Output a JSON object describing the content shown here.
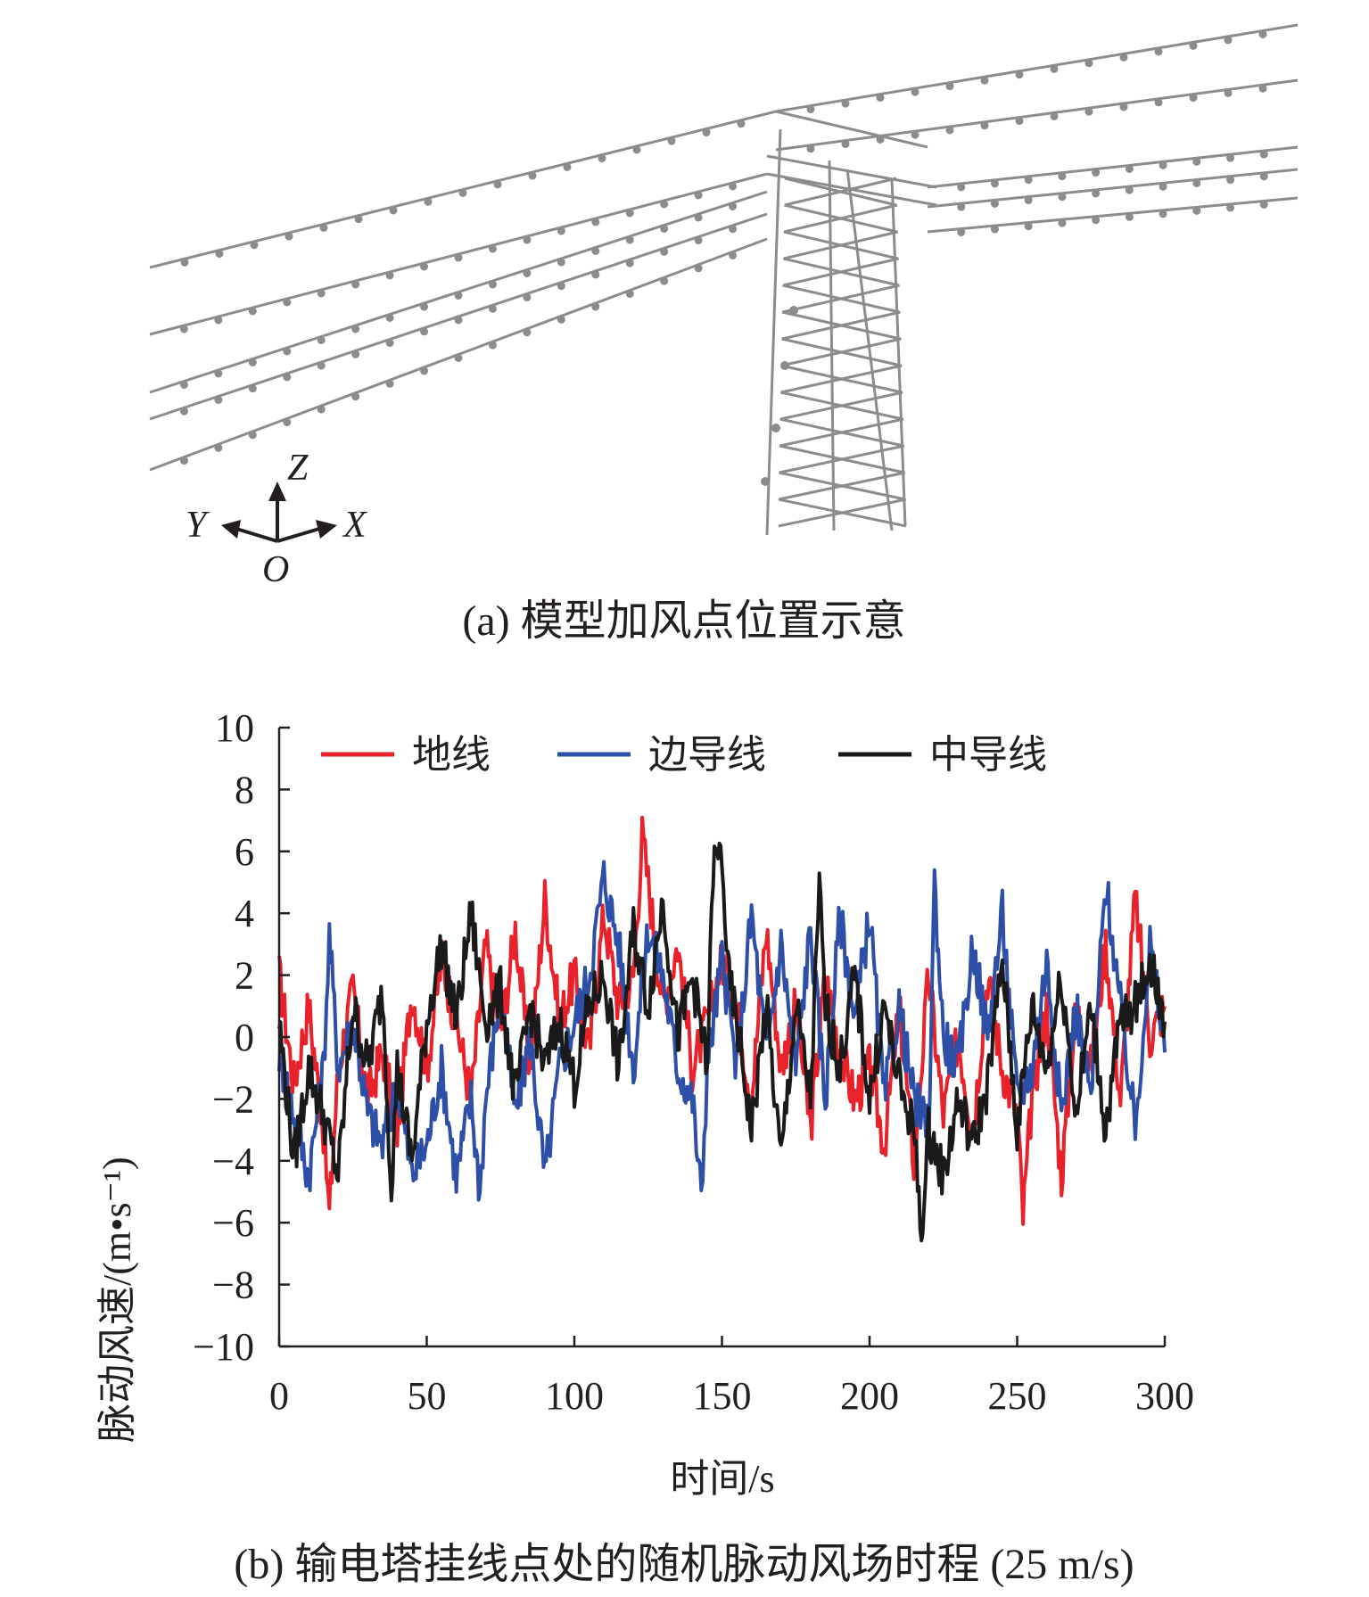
{
  "panel_a": {
    "caption": "(a) 模型加风点位置示意",
    "axes_labels": {
      "z": "Z",
      "y": "Y",
      "x": "X",
      "o": "O"
    }
  },
  "panel_b": {
    "caption": "(b) 输电塔挂线点处的随机脉动风场时程 (25 m/s)"
  },
  "colors": {
    "red": "#e8212b",
    "blue": "#2e4fa8",
    "black": "#1a1a1a",
    "tower": "#8c8c8c"
  },
  "chart_data": {
    "type": "line",
    "xlabel": "时间/s",
    "ylabel": "脉动风速/(m•s⁻¹)",
    "xlim": [
      0,
      300
    ],
    "ylim": [
      -10,
      10
    ],
    "xticks": [
      0,
      50,
      100,
      150,
      200,
      250,
      300
    ],
    "yticks": [
      -10,
      -8,
      -6,
      -4,
      -2,
      0,
      2,
      4,
      6,
      8,
      10
    ],
    "grid": false,
    "legend_position": "top",
    "series": [
      {
        "name": "地线",
        "color": "#e8212b",
        "x": [
          0,
          5,
          10,
          15,
          17,
          20,
          25,
          30,
          35,
          40,
          45,
          50,
          55,
          60,
          65,
          70,
          75,
          80,
          85,
          90,
          95,
          100,
          105,
          110,
          115,
          120,
          123,
          125,
          130,
          135,
          140,
          145,
          150,
          155,
          160,
          165,
          170,
          175,
          180,
          185,
          190,
          195,
          200,
          205,
          210,
          215,
          220,
          225,
          230,
          235,
          240,
          245,
          250,
          252,
          255,
          260,
          265,
          270,
          275,
          280,
          285,
          290,
          295,
          300
        ],
        "y": [
          2,
          -1.5,
          1,
          -3,
          -5.7,
          -1,
          1.5,
          -2,
          -0.5,
          -3,
          1.5,
          -1,
          2.5,
          0.5,
          -2,
          3,
          0,
          3.5,
          -1,
          4.5,
          0.5,
          2,
          -0.5,
          4,
          1,
          2,
          6.5,
          5,
          1,
          3,
          -1,
          0.5,
          2.5,
          1,
          -2,
          3.5,
          -1,
          1,
          -3,
          2,
          -0.5,
          -2,
          -1,
          -3.5,
          1,
          -4,
          2,
          -2.5,
          0,
          -3,
          2,
          -1,
          -2.5,
          -5.8,
          -2,
          1,
          -4.5,
          1,
          -1,
          3,
          -2,
          4.5,
          0,
          1
        ]
      },
      {
        "name": "边导线",
        "color": "#2e4fa8",
        "x": [
          0,
          5,
          10,
          15,
          17,
          20,
          25,
          30,
          35,
          40,
          45,
          50,
          55,
          60,
          65,
          68,
          70,
          75,
          80,
          85,
          90,
          95,
          100,
          105,
          110,
          115,
          120,
          125,
          130,
          135,
          140,
          143,
          145,
          150,
          155,
          160,
          165,
          170,
          175,
          180,
          185,
          190,
          195,
          200,
          205,
          210,
          215,
          220,
          222,
          225,
          230,
          235,
          240,
          245,
          250,
          255,
          260,
          265,
          270,
          275,
          280,
          285,
          290,
          295,
          300
        ],
        "y": [
          -0.5,
          -2.5,
          -4.5,
          -1,
          3.3,
          -1,
          0.5,
          -2.5,
          -3.5,
          -1.5,
          -4.5,
          -3.5,
          -1,
          -4.5,
          -2,
          -5,
          -2,
          1.5,
          -2.5,
          0,
          -4.5,
          -1,
          0.5,
          2,
          5.2,
          3,
          -1,
          3.5,
          2,
          -1,
          -2,
          -5.2,
          -1,
          2.5,
          -1,
          4,
          -0.5,
          3,
          -1,
          3.5,
          -2,
          4,
          0.5,
          4,
          -2,
          1,
          -2,
          -3,
          5,
          0,
          -1,
          3,
          0,
          4,
          -2,
          -1,
          2.5,
          -2.5,
          1,
          -2,
          5,
          1,
          -3,
          3,
          -0.5
        ]
      },
      {
        "name": "中导线",
        "color": "#1a1a1a",
        "x": [
          0,
          5,
          10,
          15,
          20,
          25,
          30,
          35,
          38,
          40,
          45,
          50,
          55,
          60,
          65,
          70,
          75,
          80,
          85,
          90,
          95,
          100,
          105,
          110,
          115,
          120,
          125,
          130,
          135,
          140,
          145,
          147,
          150,
          152,
          155,
          160,
          165,
          170,
          175,
          180,
          183,
          185,
          190,
          195,
          200,
          205,
          210,
          215,
          218,
          220,
          225,
          230,
          235,
          240,
          245,
          250,
          255,
          260,
          265,
          270,
          275,
          280,
          285,
          290,
          295,
          300
        ],
        "y": [
          0.5,
          -4,
          -1,
          -2.5,
          -4.5,
          1,
          -1,
          1.5,
          -4.8,
          -1,
          -4,
          0.5,
          3,
          0.5,
          4,
          0.5,
          1.5,
          -2,
          1,
          -1,
          0.5,
          -1.5,
          1,
          2,
          -1,
          3.5,
          1,
          4.5,
          0,
          2,
          -1,
          5.5,
          6,
          2,
          0.5,
          -3,
          1,
          -4,
          1,
          -2,
          4.8,
          1,
          -1,
          2,
          -2,
          1,
          -1.5,
          -3,
          -6.5,
          -3,
          -4.5,
          -2,
          -3.5,
          -1.5,
          2.5,
          -3,
          1,
          -1,
          2,
          -2.5,
          1,
          -3,
          0.5,
          1,
          2.5,
          0.5
        ]
      }
    ]
  }
}
